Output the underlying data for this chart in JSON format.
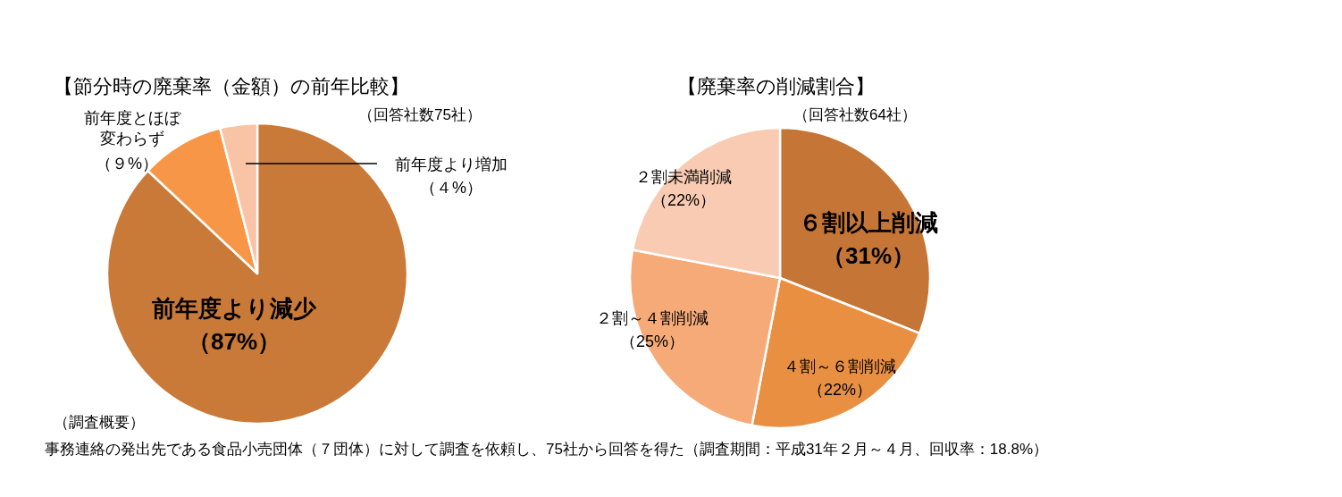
{
  "chart_data": [
    {
      "type": "pie",
      "title": "【節分時の廃棄率（金額）の前年比較】",
      "subtitle": "（回答社数75社）",
      "categories": [
        "前年度より減少",
        "前年度とほぼ変わらず",
        "前年度より増加"
      ],
      "values": [
        87,
        9,
        4
      ],
      "colors": [
        "#c97a38",
        "#f79646",
        "#f9c3a6"
      ],
      "value_labels": [
        "（87%）",
        "（９%）",
        "（４%）"
      ],
      "annotations": [
        "（調査概要）",
        "事務連絡の発出先である食品小売団体（７団体）に対して調査を依頼し、75社から回答を得た（調査期間：平成31年２月～４月、回収率：18.8%）"
      ]
    },
    {
      "type": "pie",
      "title": "【廃棄率の削減割合】",
      "subtitle": "（回答社数64社）",
      "categories": [
        "６割以上削減",
        "４割～６割削減",
        "２割～４割削減",
        "２割未満削減"
      ],
      "values": [
        31,
        22,
        25,
        22
      ],
      "colors": [
        "#c57535",
        "#e88f42",
        "#f6aa78",
        "#f8cbb2"
      ],
      "value_labels": [
        "（31%）",
        "（22%）",
        "（25%）",
        "（22%）"
      ]
    }
  ]
}
